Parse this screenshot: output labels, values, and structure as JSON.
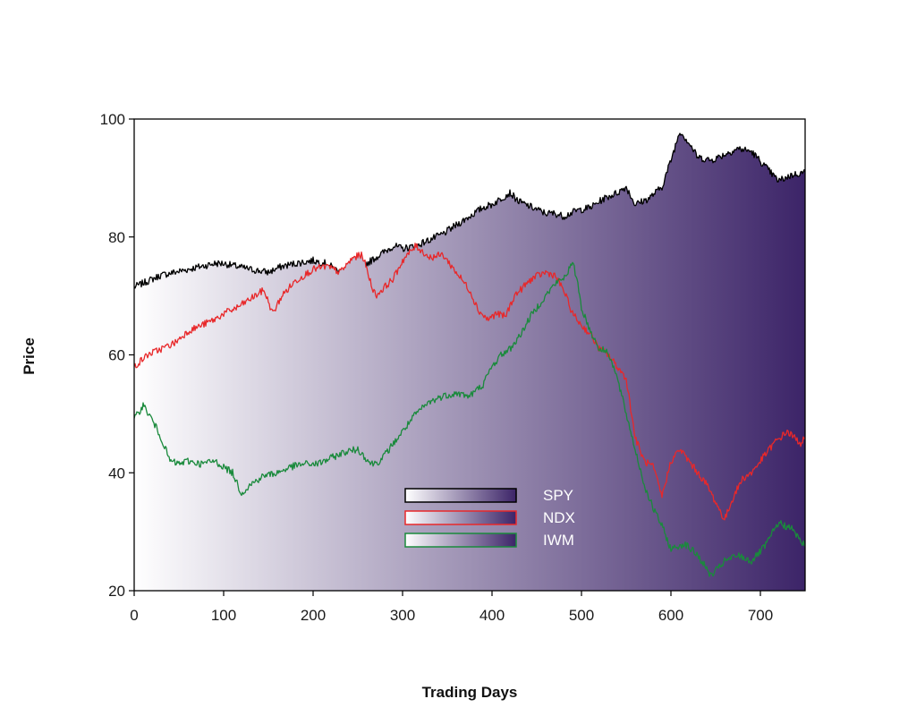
{
  "chart_data": {
    "type": "area",
    "xlabel": "Trading Days",
    "ylabel": "Price",
    "xlim": [
      0,
      750
    ],
    "ylim": [
      20,
      100
    ],
    "xticks": [
      0,
      100,
      200,
      300,
      400,
      500,
      600,
      700
    ],
    "yticks": [
      20,
      40,
      60,
      80,
      100
    ],
    "grid": false,
    "legend_position": "bottom-center",
    "fill_gradient": [
      "#ffffff",
      "#3c2468"
    ],
    "series": [
      {
        "name": "SPY",
        "color": "#000000",
        "fill": true,
        "x": [
          0,
          15,
          30,
          45,
          60,
          75,
          90,
          100,
          115,
          130,
          150,
          165,
          180,
          200,
          215,
          230,
          245,
          260,
          275,
          290,
          300,
          315,
          330,
          345,
          360,
          375,
          390,
          400,
          415,
          420,
          430,
          445,
          460,
          470,
          480,
          495,
          510,
          525,
          540,
          550,
          560,
          575,
          590,
          600,
          610,
          620,
          630,
          645,
          660,
          675,
          690,
          705,
          720,
          735,
          750
        ],
        "y": [
          71.5,
          72.5,
          73.5,
          74,
          74.5,
          75,
          75.5,
          75.5,
          75,
          74.5,
          74,
          75,
          75.5,
          76,
          75.5,
          74,
          73.5,
          75.5,
          77,
          78.5,
          78,
          78.5,
          79.5,
          80.5,
          82,
          83.5,
          85,
          85.5,
          87,
          87.5,
          86,
          85,
          84,
          84,
          83.5,
          84.5,
          85,
          86.5,
          87.5,
          88.5,
          85.5,
          86.5,
          88.5,
          93,
          98,
          96,
          93.5,
          93,
          94,
          95,
          94.5,
          92,
          89.5,
          90.5,
          91
        ]
      },
      {
        "name": "NDX",
        "color": "#e8282a",
        "fill": true,
        "x": [
          0,
          15,
          30,
          45,
          60,
          75,
          90,
          100,
          115,
          130,
          145,
          155,
          165,
          180,
          200,
          215,
          230,
          245,
          255,
          265,
          270,
          280,
          290,
          300,
          315,
          330,
          345,
          355,
          365,
          375,
          385,
          395,
          405,
          415,
          425,
          435,
          445,
          460,
          470,
          480,
          490,
          500,
          510,
          520,
          530,
          540,
          550,
          560,
          570,
          580,
          590,
          600,
          610,
          620,
          630,
          640,
          650,
          660,
          670,
          680,
          690,
          700,
          715,
          730,
          745,
          750
        ],
        "y": [
          58,
          60,
          61,
          62,
          64,
          65,
          66,
          67,
          68,
          69.5,
          71,
          67,
          70,
          72.5,
          74.5,
          75,
          74,
          76.5,
          77,
          72,
          70,
          71.5,
          73,
          76,
          78.5,
          76.5,
          77,
          75,
          73,
          71,
          67.5,
          66,
          67,
          66.5,
          70,
          71.5,
          73,
          74,
          73.5,
          71,
          67,
          65,
          63.5,
          61,
          60,
          58,
          56,
          46,
          42,
          41,
          36,
          42,
          44,
          42,
          40,
          38,
          35,
          32,
          36,
          39,
          40,
          42,
          45,
          47,
          45,
          46
        ]
      },
      {
        "name": "IWM",
        "color": "#1a8a3c",
        "fill": false,
        "x": [
          0,
          10,
          20,
          30,
          40,
          50,
          60,
          75,
          90,
          100,
          110,
          120,
          130,
          145,
          160,
          175,
          190,
          205,
          220,
          235,
          250,
          265,
          275,
          285,
          300,
          315,
          330,
          345,
          360,
          375,
          390,
          400,
          410,
          420,
          430,
          445,
          460,
          470,
          480,
          490,
          495,
          500,
          510,
          520,
          530,
          540,
          550,
          560,
          570,
          580,
          590,
          600,
          615,
          630,
          645,
          660,
          675,
          690,
          705,
          720,
          735,
          750
        ],
        "y": [
          49,
          51.5,
          49,
          46,
          42,
          41.5,
          42,
          41.5,
          42,
          41,
          40,
          36.5,
          38,
          39.5,
          40,
          41,
          41.5,
          41.5,
          42.5,
          43.5,
          44,
          41.5,
          42,
          44,
          47,
          50,
          52,
          53,
          53.5,
          53,
          55,
          58,
          60,
          61,
          63,
          67,
          70,
          72,
          73,
          75.5,
          73,
          68,
          64,
          61,
          60.5,
          56,
          50,
          44,
          38,
          34,
          31,
          27,
          28,
          26,
          22.5,
          25,
          26,
          25,
          27.5,
          31.5,
          30.5,
          27.5
        ]
      }
    ]
  }
}
